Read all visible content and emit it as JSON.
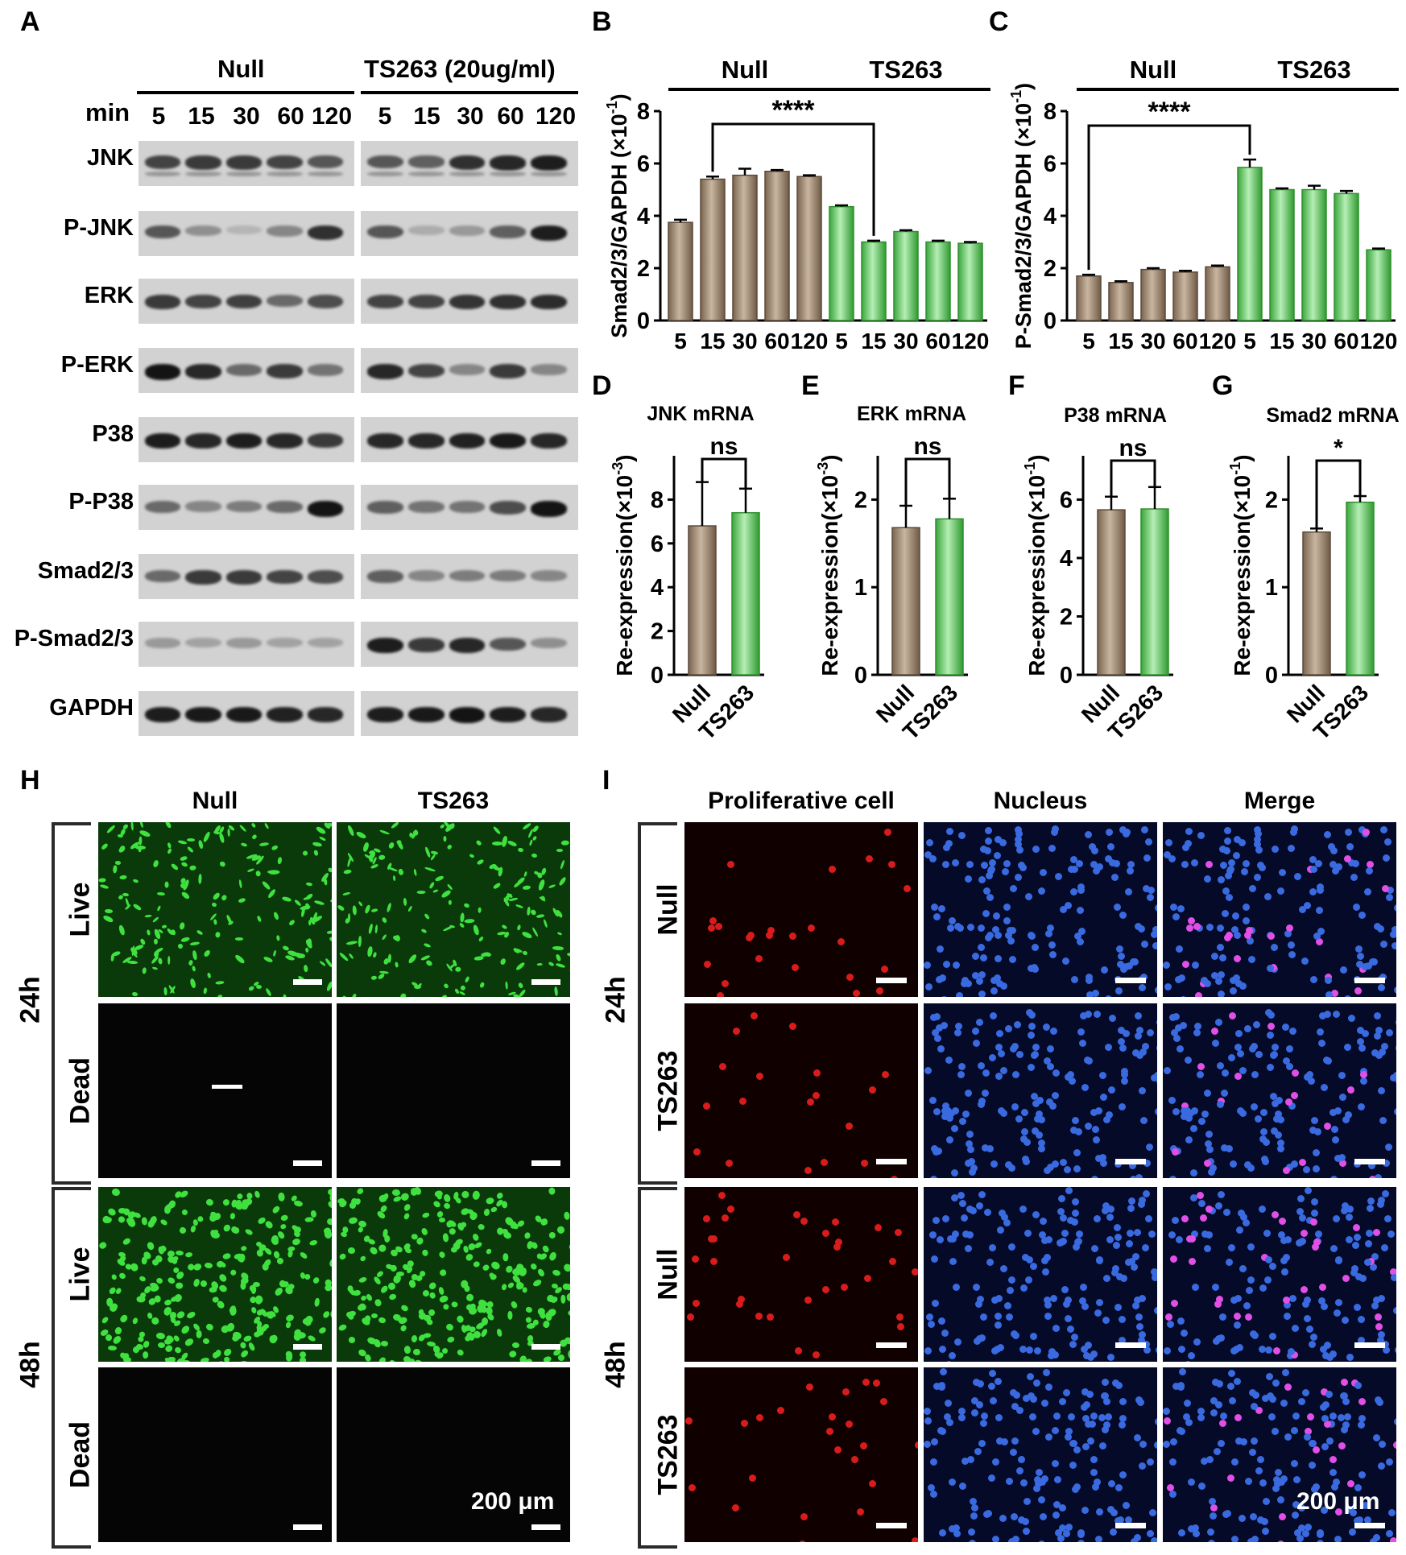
{
  "panels": {
    "A": "A",
    "B": "B",
    "C": "C",
    "D": "D",
    "E": "E",
    "F": "F",
    "G": "G",
    "H": "H",
    "I": "I"
  },
  "westernBlot": {
    "group_null": "Null",
    "group_ts": "TS263 (20ug/ml)",
    "min_label": "min",
    "times": [
      "5",
      "15",
      "30",
      "60",
      "120"
    ],
    "rows": [
      "JNK",
      "P-JNK",
      "ERK",
      "P-ERK",
      "P38",
      "P-P38",
      "Smad2/3",
      "P-Smad2/3",
      "GAPDH"
    ]
  },
  "chart_data": [
    {
      "id": "B",
      "type": "bar",
      "ylabel_main": "Smad2/3/GAPDH (×10",
      "ylabel_exp": "-1",
      "ylabel_close": ")",
      "group_null": "Null",
      "group_ts": "TS263",
      "categories": [
        "5",
        "15",
        "30",
        "60",
        "120",
        "5",
        "15",
        "30",
        "60",
        "120"
      ],
      "values": [
        3.75,
        5.4,
        5.55,
        5.7,
        5.5,
        4.35,
        3.0,
        3.4,
        3.0,
        2.95
      ],
      "errors": [
        0.1,
        0.1,
        0.25,
        0.05,
        0.05,
        0.05,
        0.05,
        0.05,
        0.05,
        0.05
      ],
      "ylim": [
        0,
        8
      ],
      "yticks": [
        "0",
        "2",
        "4",
        "6",
        "8"
      ],
      "significance": "****",
      "sig_from": 1,
      "sig_to": 6
    },
    {
      "id": "C",
      "type": "bar",
      "ylabel_main": "P-Smad2/3/GAPDH (×10",
      "ylabel_exp": "-1",
      "ylabel_close": ")",
      "group_null": "Null",
      "group_ts": "TS263",
      "categories": [
        "5",
        "15",
        "30",
        "60",
        "120",
        "5",
        "15",
        "30",
        "60",
        "120"
      ],
      "values": [
        1.7,
        1.45,
        1.95,
        1.85,
        2.05,
        5.85,
        5.0,
        5.0,
        4.85,
        2.7
      ],
      "errors": [
        0.05,
        0.05,
        0.05,
        0.05,
        0.05,
        0.3,
        0.05,
        0.15,
        0.1,
        0.05
      ],
      "ylim": [
        0,
        8
      ],
      "yticks": [
        "0",
        "2",
        "4",
        "6",
        "8"
      ],
      "significance": "****",
      "sig_from": 0,
      "sig_to": 5
    },
    {
      "id": "D",
      "type": "bar",
      "title": "JNK mRNA",
      "ylabel_main": "Re-expression(×10",
      "ylabel_exp": "-3",
      "ylabel_close": ")",
      "categories": [
        "Null",
        "TS263"
      ],
      "values": [
        6.8,
        7.4
      ],
      "errors": [
        2.0,
        1.1
      ],
      "ylim": [
        0,
        10
      ],
      "yticks": [
        "0",
        "2",
        "4",
        "6",
        "8"
      ],
      "significance": "ns"
    },
    {
      "id": "E",
      "type": "bar",
      "title": "ERK mRNA",
      "ylabel_main": "Re-expression(×10",
      "ylabel_exp": "-3",
      "ylabel_close": ")",
      "categories": [
        "Null",
        "TS263"
      ],
      "values": [
        1.68,
        1.78
      ],
      "errors": [
        0.25,
        0.23
      ],
      "ylim": [
        0,
        2.5
      ],
      "yticks": [
        "0",
        "1",
        "2"
      ],
      "significance": "ns"
    },
    {
      "id": "F",
      "type": "bar",
      "title": "P38 mRNA",
      "ylabel_main": "Re-expression(×10",
      "ylabel_exp": "-1",
      "ylabel_close": ")",
      "categories": [
        "Null",
        "TS263"
      ],
      "values": [
        5.65,
        5.68
      ],
      "errors": [
        0.45,
        0.75
      ],
      "ylim": [
        0,
        7.5
      ],
      "yticks": [
        "0",
        "2",
        "4",
        "6"
      ],
      "significance": "ns"
    },
    {
      "id": "G",
      "type": "bar",
      "title": "Smad2 mRNA",
      "ylabel_main": "Re-expression(×10",
      "ylabel_exp": "-1",
      "ylabel_close": ")",
      "categories": [
        "Null",
        "TS263"
      ],
      "values": [
        1.63,
        1.97
      ],
      "errors": [
        0.04,
        0.07
      ],
      "ylim": [
        0,
        2.5
      ],
      "yticks": [
        "0",
        "1",
        "2"
      ],
      "significance": "*"
    }
  ],
  "liveDead": {
    "col_null": "Null",
    "col_ts": "TS263",
    "time_24": "24h",
    "time_48": "48h",
    "live": "Live",
    "dead": "Dead",
    "scale": "200 μm"
  },
  "proliferation": {
    "col_prolif": "Proliferative cell",
    "col_nucleus": "Nucleus",
    "col_merge": "Merge",
    "time_24": "24h",
    "time_48": "48h",
    "row_null": "Null",
    "row_ts": "TS263",
    "scale": "200 μm"
  },
  "colors": {
    "brown": "#8b7560",
    "green": "#4db84d",
    "live": "#1fb81f",
    "red": "#d01818",
    "blue": "#2f5fd8",
    "magenta": "#e050e8"
  }
}
